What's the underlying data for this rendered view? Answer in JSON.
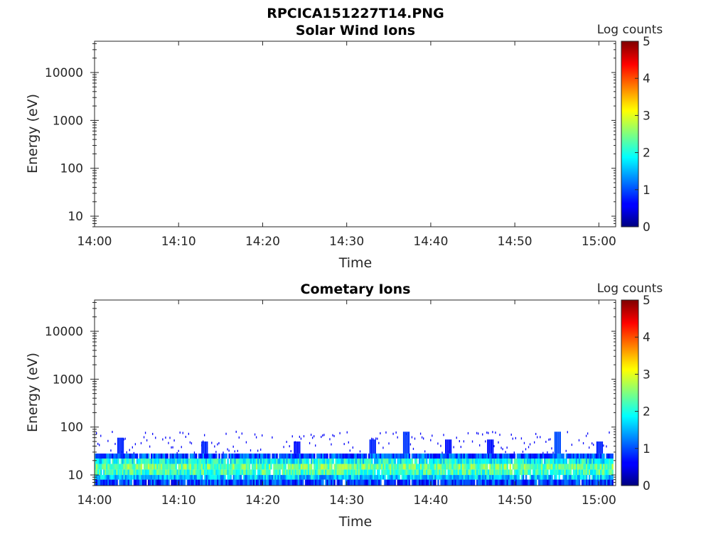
{
  "figure_title": "RPCICA151227T14.PNG",
  "chart_data": [
    {
      "type": "heatmap",
      "title": "Solar Wind Ions",
      "xlabel": "Time",
      "ylabel": "Energy (eV)",
      "x_ticks": [
        "14:00",
        "14:10",
        "14:20",
        "14:30",
        "14:40",
        "14:50",
        "15:00"
      ],
      "xlim": [
        "14:00",
        "15:02"
      ],
      "y_scale": "log",
      "y_ticks": [
        10,
        100,
        1000,
        10000
      ],
      "y_tick_labels": [
        "10",
        "100",
        "1000",
        "10000"
      ],
      "ylim": [
        6,
        45000
      ],
      "colorbar": {
        "label": "Log counts",
        "range": [
          0,
          5
        ],
        "ticks": [
          "0",
          "1",
          "2",
          "3",
          "4",
          "5"
        ]
      },
      "cells": []
    },
    {
      "type": "heatmap",
      "title": "Cometary Ions",
      "xlabel": "Time",
      "ylabel": "Energy (eV)",
      "x_ticks": [
        "14:00",
        "14:10",
        "14:20",
        "14:30",
        "14:40",
        "14:50",
        "15:00"
      ],
      "xlim": [
        "14:00",
        "15:02"
      ],
      "y_scale": "log",
      "y_ticks": [
        10,
        100,
        1000,
        10000
      ],
      "y_tick_labels": [
        "10",
        "100",
        "1000",
        "10000"
      ],
      "ylim": [
        6,
        45000
      ],
      "colorbar": {
        "label": "Log counts",
        "range": [
          0,
          5
        ],
        "ticks": [
          "0",
          "1",
          "2",
          "3",
          "4",
          "5"
        ]
      },
      "bands": [
        {
          "energy_range": [
            6,
            8
          ],
          "log_counts": 0.9
        },
        {
          "energy_range": [
            8,
            10
          ],
          "log_counts": 1.6
        },
        {
          "energy_range": [
            10,
            13
          ],
          "log_counts": 2.2
        },
        {
          "energy_range": [
            13,
            17
          ],
          "log_counts": 2.4
        },
        {
          "energy_range": [
            17,
            22
          ],
          "log_counts": 1.9
        },
        {
          "energy_range": [
            22,
            28
          ],
          "log_counts": 1.0
        }
      ],
      "sparse_cutoff_ev": 80,
      "bursts": [
        {
          "time": "14:03",
          "energy_range": [
            28,
            60
          ],
          "log_counts": 0.8
        },
        {
          "time": "14:13",
          "energy_range": [
            28,
            50
          ],
          "log_counts": 0.8
        },
        {
          "time": "14:24",
          "energy_range": [
            28,
            50
          ],
          "log_counts": 0.7
        },
        {
          "time": "14:33",
          "energy_range": [
            28,
            55
          ],
          "log_counts": 0.8
        },
        {
          "time": "14:37",
          "energy_range": [
            28,
            80
          ],
          "log_counts": 0.9
        },
        {
          "time": "14:42",
          "energy_range": [
            28,
            55
          ],
          "log_counts": 0.7
        },
        {
          "time": "14:47",
          "energy_range": [
            28,
            55
          ],
          "log_counts": 0.7
        },
        {
          "time": "14:55",
          "energy_range": [
            28,
            80
          ],
          "log_counts": 1.0
        },
        {
          "time": "15:00",
          "energy_range": [
            28,
            50
          ],
          "log_counts": 0.8
        }
      ]
    }
  ]
}
